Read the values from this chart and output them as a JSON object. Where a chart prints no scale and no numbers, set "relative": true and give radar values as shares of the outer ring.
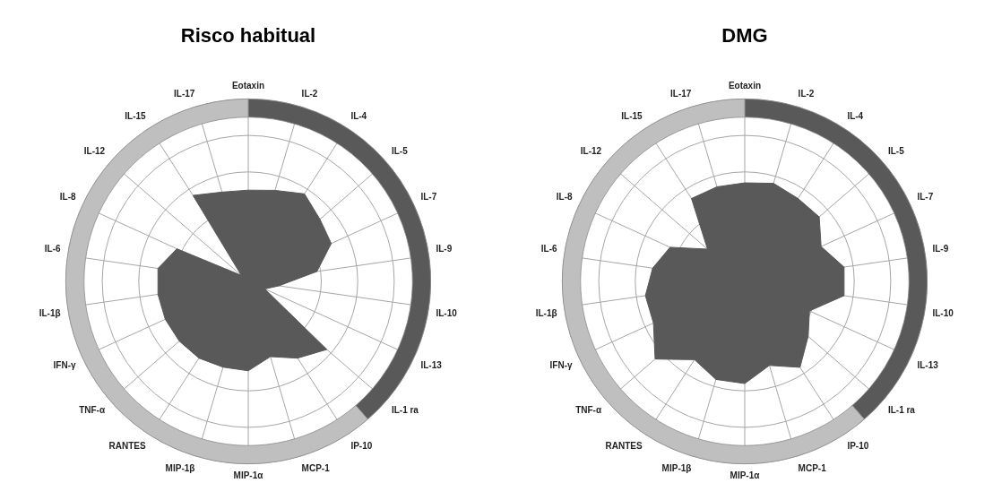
{
  "chart_data": [
    {
      "type": "radar",
      "title": "Risco habitual",
      "categories": [
        "Eotaxin",
        "IL-2",
        "IL-4",
        "IL-5",
        "IL-7",
        "IL-9",
        "IL-10",
        "IL-13",
        "IL-1 ra",
        "IP-10",
        "MCP-1",
        "MIP-1α",
        "MIP-1β",
        "RANTES",
        "TNF-α",
        "IFN-γ",
        "IL-1β",
        "IL-6",
        "IL-8",
        "IL-12",
        "IL-15",
        "IL-17"
      ],
      "relative": true,
      "grid": true,
      "marker": "none",
      "series": [
        {
          "color": "#595959",
          "values": [
            0.5,
            0.52,
            0.57,
            0.52,
            0.5,
            0.38,
            0.17,
            0.1,
            0.57,
            0.5,
            0.43,
            0.49,
            0.49,
            0.5,
            0.5,
            0.5,
            0.5,
            0.5,
            0.43,
            0.05,
            0.56,
            0.51
          ]
        }
      ]
    },
    {
      "type": "radar",
      "title": "DMG",
      "categories": [
        "Eotaxin",
        "IL-2",
        "IL-4",
        "IL-5",
        "IL-7",
        "IL-9",
        "IL-10",
        "IL-13",
        "IL-1 ra",
        "IP-10",
        "MCP-1",
        "MIP-1α",
        "MIP-1β",
        "RANTES",
        "TNF-α",
        "IFN-γ",
        "IL-1β",
        "IL-6",
        "IL-8",
        "IL-12",
        "IL-15",
        "IL-17"
      ],
      "relative": true,
      "grid": true,
      "marker": "none",
      "series": [
        {
          "color": "#595959",
          "values": [
            0.54,
            0.56,
            0.54,
            0.54,
            0.46,
            0.55,
            0.55,
            0.39,
            0.46,
            0.56,
            0.48,
            0.56,
            0.56,
            0.51,
            0.65,
            0.55,
            0.55,
            0.51,
            0.45,
            0.27,
            0.54,
            0.54
          ]
        }
      ]
    }
  ]
}
